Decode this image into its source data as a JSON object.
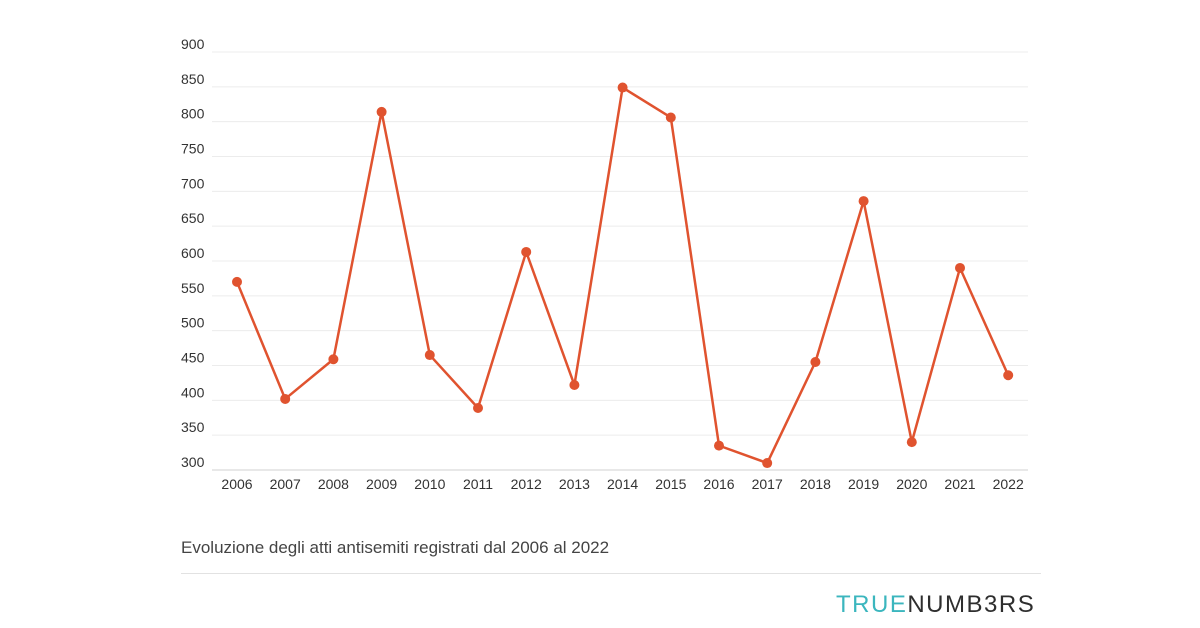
{
  "chart_data": {
    "type": "line",
    "title": "",
    "xlabel": "",
    "ylabel": "",
    "ylim": [
      300,
      900
    ],
    "yticks": [
      300,
      350,
      400,
      450,
      500,
      550,
      600,
      650,
      700,
      750,
      800,
      850,
      900
    ],
    "categories": [
      "2006",
      "2007",
      "2008",
      "2009",
      "2010",
      "2011",
      "2012",
      "2013",
      "2014",
      "2015",
      "2016",
      "2017",
      "2018",
      "2019",
      "2020",
      "2021",
      "2022"
    ],
    "series": [
      {
        "values": [
          570,
          402,
          459,
          814,
          465,
          389,
          613,
          422,
          849,
          806,
          335,
          310,
          455,
          686,
          340,
          590,
          436
        ],
        "color": "#e0532f"
      }
    ],
    "grid": true,
    "legend": "none"
  },
  "caption": "Evoluzione degli atti antisemiti registrati dal 2006 al 2022",
  "brand": {
    "part1": "TRUE",
    "part2": "NUMB3RS",
    "color1": "#3bb6be",
    "color2": "#2e2e2e"
  }
}
